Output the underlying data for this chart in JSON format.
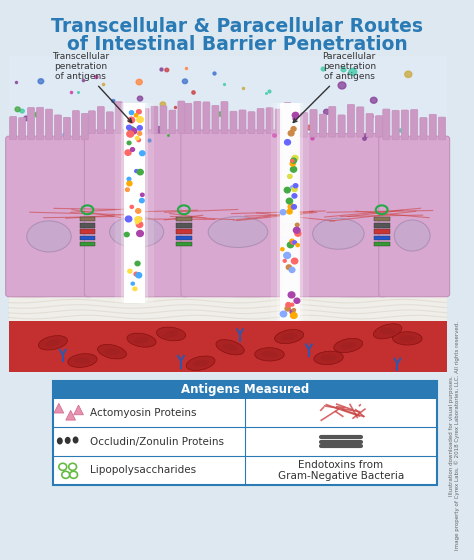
{
  "title_line1": "Transcellular & Paracellular Routes",
  "title_line2": "of Intestinal Barrier Penetration",
  "title_color": "#2a7ab5",
  "bg_color": "#dde8f0",
  "diagram_bg": "#e8eef5",
  "label_transcellular": "Transcellular\npenetration\nof antigens",
  "label_paracellular": "Paracellular\npenetration\nof antigens",
  "legend_header": "Antigens Measured",
  "legend_header_bg": "#2a7ab5",
  "legend_header_color": "#ffffff",
  "legend_bg": "#ffffff",
  "legend_border": "#2a7ab5",
  "legend_items_left": [
    "Actomyosin Proteins",
    "Occludin/Zonulin Proteins",
    "Lipopolysaccharides"
  ],
  "legend_items_right": [
    "",
    "",
    "Endotoxins from\nGram-Negative Bacteria"
  ],
  "cell_color_main": "#d9a8d0",
  "cell_color_dark": "#c490bc",
  "cell_nucleus_color": "#c8a8cc",
  "cell_nucleus_edge": "#b090b8",
  "microvilli_color": "#cc99c4",
  "tight_junction_colors": [
    "#8b7355",
    "#4a4a4a",
    "#cc3333",
    "#3333cc",
    "#339933"
  ],
  "blood_vessel_bg": "#cc3333",
  "rbc_color": "#aa2222",
  "rbc_edge": "#881111",
  "antibody_color": "#3355aa",
  "connective_color": "#f0f0f0",
  "transcellular_path_color": "#ffffff",
  "paracellular_path_color": "#ffffff",
  "annotation_color": "#333333",
  "arrow_color": "#222222",
  "pink_triangle_color": "#e890b0",
  "dark_blob_color": "#333333",
  "green_circle_color": "#66bb44",
  "red_fiber_color": "#cc4444",
  "brown_fiber_color": "#cc7744",
  "endotoxin_line_color": "#555555"
}
